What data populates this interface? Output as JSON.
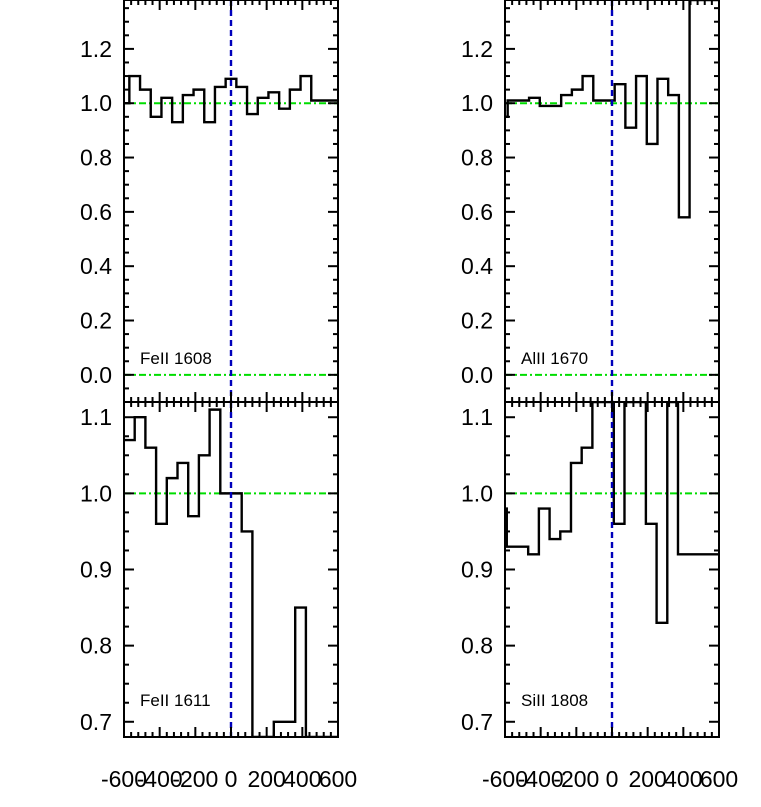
{
  "chart_data": [
    {
      "type": "line",
      "step": true,
      "label": "FeII 1608",
      "xlim": [
        -600,
        600
      ],
      "ylim": [
        -0.1,
        1.38
      ],
      "yticks": [
        "0.0",
        "0.2",
        "0.4",
        "0.6",
        "0.8",
        "1.0",
        "1.2"
      ],
      "ytick_values": [
        0.0,
        0.2,
        0.4,
        0.6,
        0.8,
        1.0,
        1.2
      ],
      "xticks": [
        "-600",
        "-400",
        "-200",
        "0",
        "200",
        "400",
        "600"
      ],
      "xtick_values": [
        -600,
        -400,
        -200,
        0,
        200,
        400,
        600
      ],
      "show_xtick_labels": false,
      "x": [
        -600,
        -570,
        -510,
        -450,
        -390,
        -330,
        -270,
        -210,
        -150,
        -90,
        -30,
        30,
        90,
        150,
        210,
        270,
        330,
        390,
        450,
        510,
        570
      ],
      "y": [
        1.0,
        1.1,
        1.05,
        0.95,
        1.02,
        0.93,
        1.03,
        1.05,
        0.93,
        1.06,
        1.09,
        1.06,
        0.96,
        1.02,
        1.04,
        0.98,
        1.05,
        1.1,
        1.01,
        1.01,
        1.01
      ],
      "hlines": [
        1.0,
        0.0
      ],
      "vline": 0,
      "colors": {
        "data": "#000000",
        "continuum": "#00dd00",
        "velocity_zero": "#0000bb"
      }
    },
    {
      "type": "line",
      "step": true,
      "label": "AlII 1670",
      "xlim": [
        -600,
        600
      ],
      "ylim": [
        -0.1,
        1.38
      ],
      "yticks": [
        "0.0",
        "0.2",
        "0.4",
        "0.6",
        "0.8",
        "1.0",
        "1.2"
      ],
      "ytick_values": [
        0.0,
        0.2,
        0.4,
        0.6,
        0.8,
        1.0,
        1.2
      ],
      "xticks": [
        "-600",
        "-400",
        "-200",
        "0",
        "200",
        "400",
        "600"
      ],
      "xtick_values": [
        -600,
        -400,
        -200,
        0,
        200,
        400,
        600
      ],
      "show_xtick_labels": false,
      "x": [
        -600,
        -585,
        -525,
        -465,
        -405,
        -345,
        -285,
        -225,
        -165,
        -105,
        -45,
        15,
        75,
        135,
        195,
        255,
        315,
        375,
        435,
        495,
        555,
        600
      ],
      "y": [
        0.95,
        1.01,
        1.01,
        1.02,
        0.99,
        0.99,
        1.03,
        1.05,
        1.1,
        1.01,
        1.01,
        1.07,
        0.91,
        1.1,
        0.85,
        1.09,
        1.03,
        0.58,
        1.38,
        1.38,
        1.38,
        1.38
      ],
      "hlines": [
        1.0,
        0.0
      ],
      "vline": 0,
      "colors": {
        "data": "#000000",
        "continuum": "#00dd00",
        "velocity_zero": "#0000bb"
      }
    },
    {
      "type": "line",
      "step": true,
      "label": "FeII 1611",
      "xlim": [
        -600,
        600
      ],
      "ylim": [
        0.68,
        1.12
      ],
      "yticks": [
        "0.7",
        "0.8",
        "0.9",
        "1.0",
        "1.1"
      ],
      "ytick_values": [
        0.7,
        0.8,
        0.9,
        1.0,
        1.1
      ],
      "xticks": [
        "-600",
        "-400",
        "-200",
        "0",
        "200",
        "400",
        "600"
      ],
      "xtick_values": [
        -600,
        -400,
        -200,
        0,
        200,
        400,
        600
      ],
      "show_xtick_labels": true,
      "x": [
        -600,
        -540,
        -480,
        -420,
        -360,
        -300,
        -240,
        -180,
        -120,
        -60,
        0,
        60,
        120,
        180,
        240,
        300,
        360,
        420,
        480,
        540
      ],
      "y": [
        1.07,
        1.1,
        1.06,
        0.96,
        1.02,
        1.04,
        0.97,
        1.05,
        1.11,
        1.0,
        1.0,
        0.95,
        0.68,
        0.68,
        0.7,
        0.7,
        0.85,
        0.68,
        0.68,
        0.68
      ],
      "hlines": [
        1.0
      ],
      "vline": 0,
      "colors": {
        "data": "#000000",
        "continuum": "#00dd00",
        "velocity_zero": "#0000bb"
      }
    },
    {
      "type": "line",
      "step": true,
      "label": "SiII 1808",
      "xlim": [
        -600,
        600
      ],
      "ylim": [
        0.68,
        1.12
      ],
      "yticks": [
        "0.7",
        "0.8",
        "0.9",
        "1.0",
        "1.1"
      ],
      "ytick_values": [
        0.7,
        0.8,
        0.9,
        1.0,
        1.1
      ],
      "xticks": [
        "-600",
        "-400",
        "-200",
        "0",
        "200",
        "400",
        "600"
      ],
      "xtick_values": [
        -600,
        -400,
        -200,
        0,
        200,
        400,
        600
      ],
      "show_xtick_labels": true,
      "x": [
        -600,
        -590,
        -530,
        -470,
        -410,
        -350,
        -290,
        -230,
        -170,
        -110,
        -50,
        10,
        70,
        130,
        190,
        250,
        310,
        370,
        430,
        490,
        550,
        600
      ],
      "y": [
        0.98,
        0.93,
        0.93,
        0.92,
        0.98,
        0.94,
        0.95,
        1.04,
        1.06,
        1.12,
        1.12,
        0.96,
        1.12,
        1.12,
        0.96,
        0.83,
        1.12,
        0.92,
        0.92,
        0.92,
        0.92,
        0.92
      ],
      "hlines": [
        1.0
      ],
      "vline": 0,
      "colors": {
        "data": "#000000",
        "continuum": "#00dd00",
        "velocity_zero": "#0000bb"
      }
    }
  ]
}
